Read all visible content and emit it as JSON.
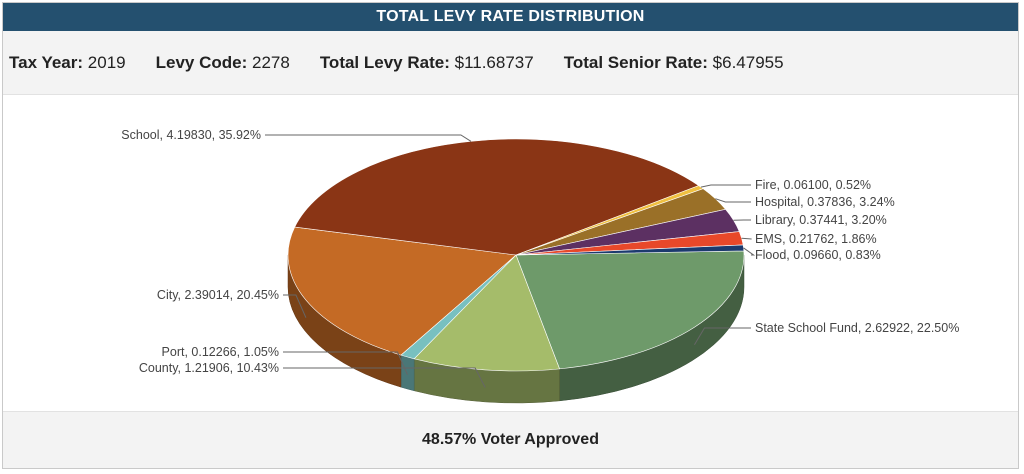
{
  "header": {
    "title": "TOTAL LEVY RATE DISTRIBUTION"
  },
  "info": {
    "tax_year_label": "Tax Year:",
    "tax_year": "2019",
    "levy_code_label": "Levy Code:",
    "levy_code": "2278",
    "total_levy_label": "Total Levy Rate:",
    "total_levy": "$11.68737",
    "senior_rate_label": "Total Senior Rate:",
    "senior_rate": "$6.47955"
  },
  "footer": {
    "text": "48.57% Voter Approved"
  },
  "chart_data": {
    "type": "pie",
    "title": "TOTAL LEVY RATE DISTRIBUTION",
    "three_d": true,
    "slices": [
      {
        "name": "State School Fund",
        "value": 2.62922,
        "percent": 22.5,
        "label": "State School Fund, 2.62922, 22.50%",
        "color": "#6e9a6a",
        "label_side": "right"
      },
      {
        "name": "County",
        "value": 1.21906,
        "percent": 10.43,
        "label": "County, 1.21906, 10.43%",
        "color": "#a5bc6a",
        "label_side": "left"
      },
      {
        "name": "Port",
        "value": 0.12266,
        "percent": 1.05,
        "label": "Port, 0.12266, 1.05%",
        "color": "#78c0c0",
        "label_side": "left"
      },
      {
        "name": "City",
        "value": 2.39014,
        "percent": 20.45,
        "label": "City, 2.39014, 20.45%",
        "color": "#c46a25",
        "label_side": "left"
      },
      {
        "name": "School",
        "value": 4.1983,
        "percent": 35.92,
        "label": "School, 4.19830, 35.92%",
        "color": "#8a3515",
        "label_side": "left"
      },
      {
        "name": "Fire",
        "value": 0.061,
        "percent": 0.52,
        "label": "Fire, 0.06100, 0.52%",
        "color": "#f0c040",
        "label_side": "right"
      },
      {
        "name": "Hospital",
        "value": 0.37836,
        "percent": 3.24,
        "label": "Hospital, 0.37836, 3.24%",
        "color": "#9a7028",
        "label_side": "right"
      },
      {
        "name": "Library",
        "value": 0.37441,
        "percent": 3.2,
        "label": "Library, 0.37441, 3.20%",
        "color": "#5c3062",
        "label_side": "right"
      },
      {
        "name": "EMS",
        "value": 0.21762,
        "percent": 1.86,
        "label": "EMS, 0.21762, 1.86%",
        "color": "#e8482a",
        "label_side": "right"
      },
      {
        "name": "Flood",
        "value": 0.0966,
        "percent": 0.83,
        "label": "Flood, 0.09660, 0.83%",
        "color": "#1c3a6e",
        "label_side": "right"
      }
    ]
  }
}
